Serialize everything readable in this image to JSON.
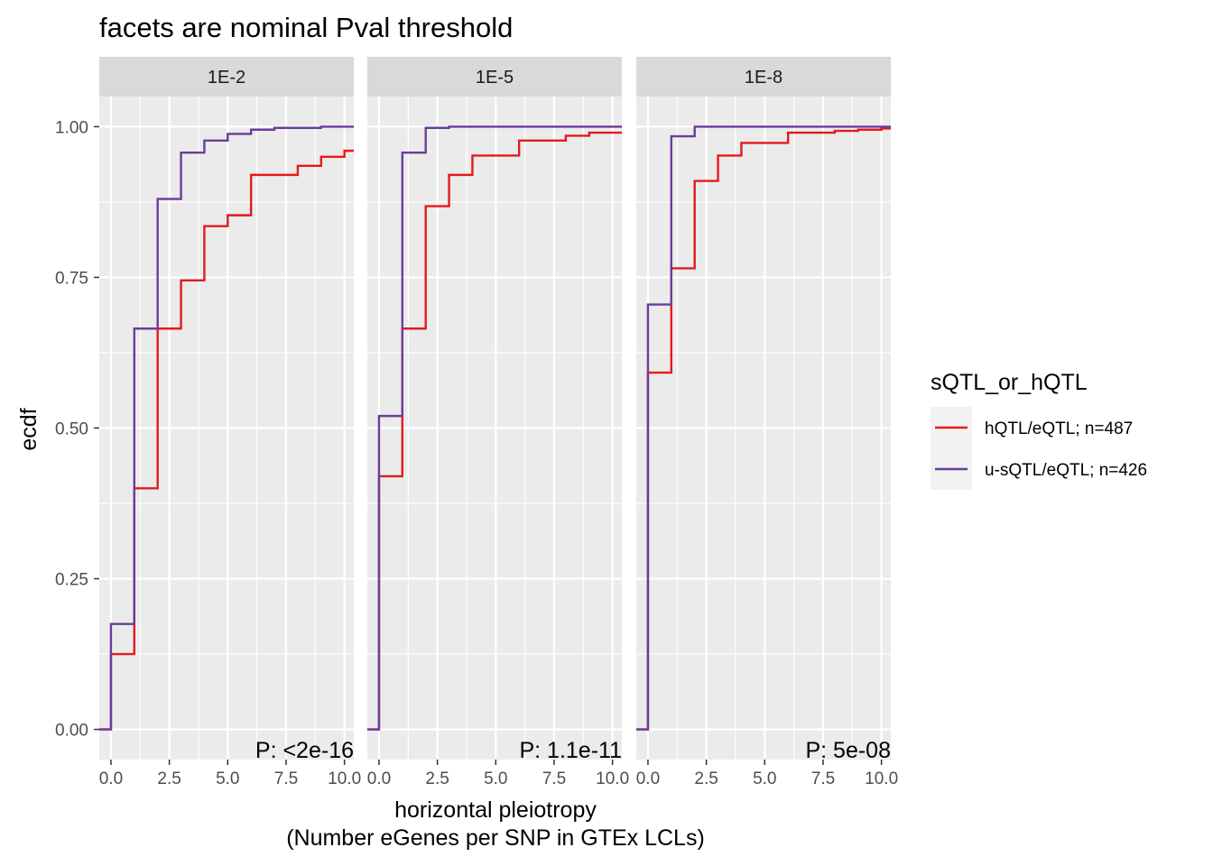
{
  "chart_data": {
    "type": "line",
    "subtype": "step-ecdf-faceted",
    "title": "facets are nominal Pval threshold",
    "xlabel_line1": "horizontal pleiotropy",
    "xlabel_line2": "(Number eGenes per SNP in GTEx LCLs)",
    "ylabel": "ecdf",
    "xlim": [
      -0.5,
      10.4
    ],
    "ylim": [
      -0.05,
      1.05
    ],
    "x_ticks": [
      0,
      2.5,
      5,
      7.5,
      10
    ],
    "x_tick_labels": [
      "0.0",
      "2.5",
      "5.0",
      "7.5",
      "10.0"
    ],
    "y_ticks": [
      0,
      0.25,
      0.5,
      0.75,
      1.0
    ],
    "y_tick_labels": [
      "0.00",
      "0.25",
      "0.50",
      "0.75",
      "1.00"
    ],
    "grid": true,
    "legend": {
      "title": "sQTL_or_hQTL",
      "placement": "right",
      "entries": [
        {
          "label": "hQTL/eQTL; n=487",
          "color": "#e41a1c"
        },
        {
          "label": "u-sQTL/eQTL; n=426",
          "color": "#6a3d9a"
        }
      ]
    },
    "facets": [
      {
        "label": "1E-2",
        "pval_text": "P: <2e-16",
        "series": [
          {
            "name": "hQTL/eQTL; n=487",
            "color": "#e41a1c",
            "x": [
              0,
              1,
              2,
              3,
              4,
              5,
              6,
              7,
              8,
              9,
              10
            ],
            "y": [
              0.125,
              0.4,
              0.665,
              0.745,
              0.835,
              0.853,
              0.92,
              0.92,
              0.935,
              0.95,
              0.96
            ]
          },
          {
            "name": "u-sQTL/eQTL; n=426",
            "color": "#6a3d9a",
            "x": [
              0,
              1,
              2,
              3,
              4,
              5,
              6,
              7,
              8,
              9,
              10
            ],
            "y": [
              0.175,
              0.665,
              0.88,
              0.957,
              0.977,
              0.988,
              0.995,
              0.998,
              0.998,
              1.0,
              1.0
            ]
          }
        ]
      },
      {
        "label": "1E-5",
        "pval_text": "P: 1.1e-11",
        "series": [
          {
            "name": "hQTL/eQTL; n=487",
            "color": "#e41a1c",
            "x": [
              0,
              1,
              2,
              3,
              4,
              5,
              6,
              7,
              8,
              9,
              10
            ],
            "y": [
              0.42,
              0.665,
              0.868,
              0.92,
              0.952,
              0.952,
              0.977,
              0.977,
              0.985,
              0.99,
              0.99
            ]
          },
          {
            "name": "u-sQTL/eQTL; n=426",
            "color": "#6a3d9a",
            "x": [
              0,
              1,
              2,
              3,
              4,
              5,
              6,
              7,
              8,
              9,
              10
            ],
            "y": [
              0.52,
              0.957,
              0.998,
              1.0,
              1.0,
              1.0,
              1.0,
              1.0,
              1.0,
              1.0,
              1.0
            ]
          }
        ]
      },
      {
        "label": "1E-8",
        "pval_text": "P: 5e-08",
        "series": [
          {
            "name": "hQTL/eQTL; n=487",
            "color": "#e41a1c",
            "x": [
              0,
              1,
              2,
              3,
              4,
              5,
              6,
              7,
              8,
              9,
              10
            ],
            "y": [
              0.592,
              0.765,
              0.91,
              0.952,
              0.973,
              0.973,
              0.99,
              0.99,
              0.993,
              0.995,
              0.997
            ]
          },
          {
            "name": "u-sQTL/eQTL; n=426",
            "color": "#6a3d9a",
            "x": [
              0,
              1,
              2,
              3,
              4,
              5,
              6,
              7,
              8,
              9,
              10
            ],
            "y": [
              0.705,
              0.984,
              1.0,
              1.0,
              1.0,
              1.0,
              1.0,
              1.0,
              1.0,
              1.0,
              1.0
            ]
          }
        ]
      }
    ]
  }
}
